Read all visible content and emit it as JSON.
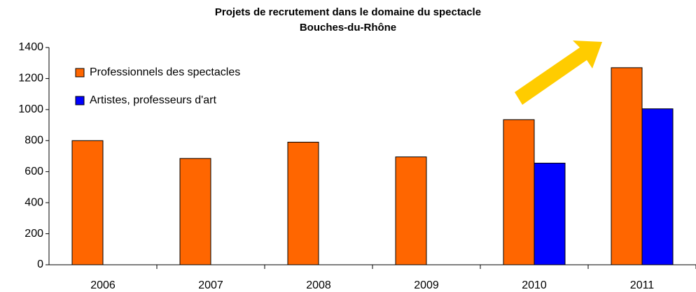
{
  "chart_data": {
    "type": "bar",
    "title": "Projets de recrutement dans le domaine du spectacle",
    "subtitle": "Bouches-du-Rhône",
    "categories": [
      "2006",
      "2007",
      "2008",
      "2009",
      "2010",
      "2011"
    ],
    "series": [
      {
        "name": "Professionnels des spectacles",
        "color": "#ff6600",
        "values": [
          800,
          685,
          790,
          695,
          935,
          1270
        ]
      },
      {
        "name": "Artistes, professeurs d'art",
        "color": "#0000ff",
        "values": [
          null,
          null,
          null,
          null,
          655,
          1005
        ]
      }
    ],
    "ylim": [
      0,
      1400
    ],
    "yticks": [
      0,
      200,
      400,
      600,
      800,
      1000,
      1200,
      1400
    ],
    "grid": false,
    "legend": "top-left"
  }
}
